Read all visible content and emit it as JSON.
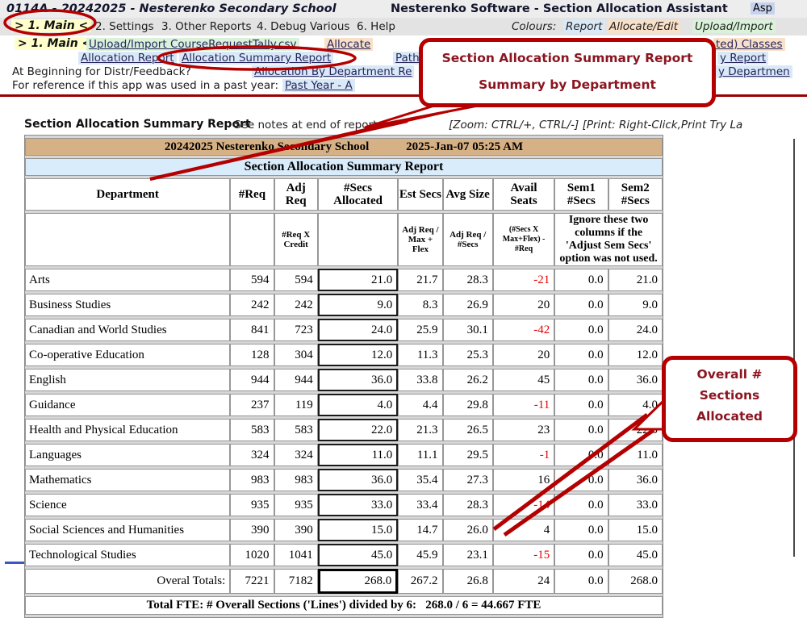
{
  "titlebar": {
    "school": "0114A - 20242025 - Nesterenko Secondary School",
    "app": "Nesterenko Software - Section Allocation Assistant",
    "asp": "Asp"
  },
  "tabs": {
    "main": "> 1. Main <",
    "items": [
      "2. Settings",
      "3. Other Reports",
      "4. Debug Various",
      "6. Help"
    ],
    "colours_label": "Colours:",
    "legend": {
      "report": "Report",
      "allocate": "Allocate/Edit",
      "upload": "Upload/Import"
    }
  },
  "menu": {
    "main": "> 1. Main <",
    "upload_link": "Upload/Import CourseRequestTally.csv",
    "allocate_link": "Allocate",
    "classes_fragment": "ted) Classes",
    "allocation_report": "Allocation Report",
    "allocation_summary_report": "Allocation Summary Report",
    "path_fragment": "Path",
    "report_fragment": "y Report",
    "distr_label": "At Beginning for Distr/Feedback?",
    "by_department_link": "Allocation By Department Re",
    "department_fragment": "y Departmen",
    "pastyear_label": "For reference if this app was used in a past year:",
    "pastyear_link": "Past Year - A"
  },
  "report": {
    "title": "Section Allocation Summary Report",
    "notes": "See notes at end of report.",
    "zoom_hint": "[Zoom: CTRL/+, CTRL/-] [Print: Right-Click,Print Try La"
  },
  "chart_data": {
    "type": "table",
    "title": "Section Allocation Summary Report",
    "columns": [
      "Department",
      "#Req",
      "Adj Req",
      "#Secs Allocated",
      "Est Secs",
      "Avg Size",
      "Avail Seats",
      "Sem1 #Secs",
      "Sem2 #Secs"
    ],
    "rows": [
      [
        "Arts",
        594,
        594,
        21.0,
        21.7,
        28.3,
        -21,
        0.0,
        21.0
      ],
      [
        "Business Studies",
        242,
        242,
        9.0,
        8.3,
        26.9,
        20,
        0.0,
        9.0
      ],
      [
        "Canadian and World Studies",
        841,
        723,
        24.0,
        25.9,
        30.1,
        -42,
        0.0,
        24.0
      ],
      [
        "Co-operative Education",
        128,
        304,
        12.0,
        11.3,
        25.3,
        20,
        0.0,
        12.0
      ],
      [
        "English",
        944,
        944,
        36.0,
        33.8,
        26.2,
        45,
        0.0,
        36.0
      ],
      [
        "Guidance",
        237,
        119,
        4.0,
        4.4,
        29.8,
        -11,
        0.0,
        4.0
      ],
      [
        "Health and Physical Education",
        583,
        583,
        22.0,
        21.3,
        26.5,
        23,
        0.0,
        22.0
      ],
      [
        "Languages",
        324,
        324,
        11.0,
        11.1,
        29.5,
        -1,
        0.0,
        11.0
      ],
      [
        "Mathematics",
        983,
        983,
        36.0,
        35.4,
        27.3,
        16,
        0.0,
        36.0
      ],
      [
        "Science",
        935,
        935,
        33.0,
        33.4,
        28.3,
        -14,
        0.0,
        33.0
      ],
      [
        "Social Sciences and Humanities",
        390,
        390,
        15.0,
        14.7,
        26.0,
        4,
        0.0,
        15.0
      ],
      [
        "Technological Studies",
        1020,
        1041,
        45.0,
        45.9,
        23.1,
        -15,
        0.0,
        45.0
      ]
    ],
    "totals": [
      "Overal Totals:",
      7221,
      7182,
      268.0,
      267.2,
      26.8,
      24,
      0.0,
      268.0
    ]
  },
  "table": {
    "school_header": "20242025 Nesterenko Secondary School",
    "timestamp": "2025-Jan-07 05:25 AM",
    "title": "Section Allocation Summary Report",
    "columns": [
      "Department",
      "#Req",
      "Adj Req",
      "#Secs\nAllocated",
      "Est Secs",
      "Avg Size",
      "Avail\nSeats",
      "Sem1\n#Secs",
      "Sem2\n#Secs"
    ],
    "sub": [
      "",
      "",
      "#Req X Credit",
      "",
      "Adj Req /\nMax + Flex",
      "Adj Req /\n#Secs",
      "(#Secs X\nMax+Flex) -\n#Req"
    ],
    "sem_note": "Ignore these two\ncolumns if the\n'Adjust Sem Secs'\noption was not used.",
    "rows": [
      [
        "Arts",
        "594",
        "594",
        "21.0",
        "21.7",
        "28.3",
        "-21",
        "0.0",
        "21.0"
      ],
      [
        "Business Studies",
        "242",
        "242",
        "9.0",
        "8.3",
        "26.9",
        "20",
        "0.0",
        "9.0"
      ],
      [
        "Canadian and World Studies",
        "841",
        "723",
        "24.0",
        "25.9",
        "30.1",
        "-42",
        "0.0",
        "24.0"
      ],
      [
        "Co-operative Education",
        "128",
        "304",
        "12.0",
        "11.3",
        "25.3",
        "20",
        "0.0",
        "12.0"
      ],
      [
        "English",
        "944",
        "944",
        "36.0",
        "33.8",
        "26.2",
        "45",
        "0.0",
        "36.0"
      ],
      [
        "Guidance",
        "237",
        "119",
        "4.0",
        "4.4",
        "29.8",
        "-11",
        "0.0",
        "4.0"
      ],
      [
        "Health and Physical Education",
        "583",
        "583",
        "22.0",
        "21.3",
        "26.5",
        "23",
        "0.0",
        "22.0"
      ],
      [
        "Languages",
        "324",
        "324",
        "11.0",
        "11.1",
        "29.5",
        "-1",
        "0.0",
        "11.0"
      ],
      [
        "Mathematics",
        "983",
        "983",
        "36.0",
        "35.4",
        "27.3",
        "16",
        "0.0",
        "36.0"
      ],
      [
        "Science",
        "935",
        "935",
        "33.0",
        "33.4",
        "28.3",
        "-14",
        "0.0",
        "33.0"
      ],
      [
        "Social Sciences and Humanities",
        "390",
        "390",
        "15.0",
        "14.7",
        "26.0",
        "4",
        "0.0",
        "15.0"
      ],
      [
        "Technological Studies",
        "1020",
        "1041",
        "45.0",
        "45.9",
        "23.1",
        "-15",
        "0.0",
        "45.0"
      ]
    ],
    "totals": [
      "Overal Totals:",
      "7221",
      "7182",
      "268.0",
      "267.2",
      "26.8",
      "24",
      "0.0",
      "268.0"
    ],
    "fte_note": "Total FTE: # Overall Sections ('Lines') divided by 6:   268.0 / 6 = 44.667 FTE"
  },
  "annotations": {
    "accent": "#b40000",
    "callout1_line1": "Section Allocation Summary Report",
    "callout1_line2": "Summary by Department",
    "callout2_line1": "Overall #",
    "callout2_line2": "Sections",
    "callout2_line3": "Allocated"
  }
}
